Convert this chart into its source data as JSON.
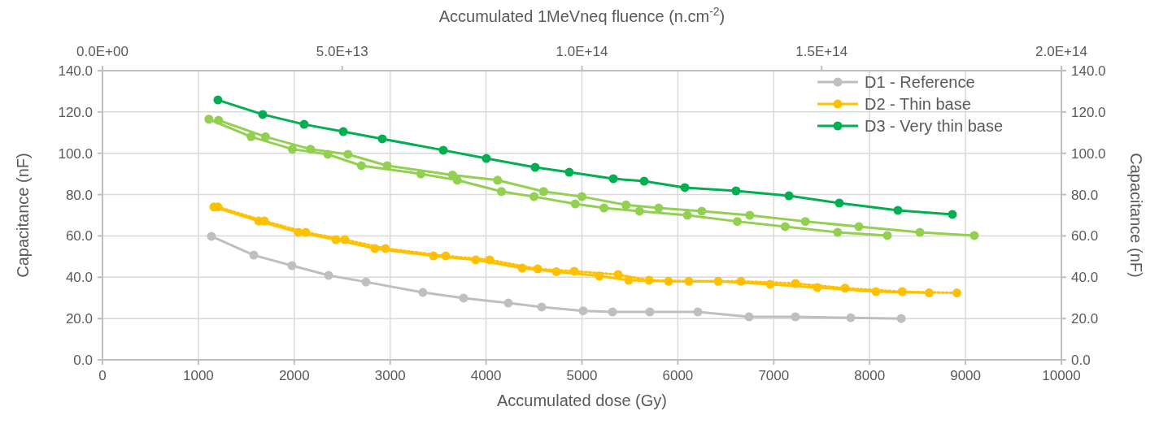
{
  "chart_data": {
    "type": "line",
    "xlabel": "Accumulated dose (Gy)",
    "ylabel": "Capacitance (nF)",
    "y2label": "Capacitance (nF)",
    "x2label": "Accumulated 1MeVneq fluence (n.cm$^{-2}$)",
    "xlim": [
      0,
      10000
    ],
    "xticks": [
      0,
      1000,
      2000,
      3000,
      4000,
      5000,
      6000,
      7000,
      8000,
      9000,
      10000
    ],
    "x2lim": [
      0,
      200000000000000.0
    ],
    "x2ticks": [
      {
        "value": 0,
        "label": "0.0E+00"
      },
      {
        "value": 50000000000000.0,
        "label": "5.0E+13"
      },
      {
        "value": 100000000000000.0,
        "label": "1.0E+14"
      },
      {
        "value": 150000000000000.0,
        "label": "1.5E+14"
      },
      {
        "value": 200000000000000.0,
        "label": "2.0E+14"
      }
    ],
    "ylim": [
      0,
      140
    ],
    "yticks": [
      {
        "value": 0,
        "label": "0.0"
      },
      {
        "value": 20,
        "label": "20.0"
      },
      {
        "value": 40,
        "label": "40.0"
      },
      {
        "value": 60,
        "label": "60.0"
      },
      {
        "value": 80,
        "label": "80.0"
      },
      {
        "value": 100,
        "label": "100.0"
      },
      {
        "value": 120,
        "label": "120.0"
      },
      {
        "value": 140,
        "label": "140.0"
      }
    ],
    "y2lim": [
      0,
      140
    ],
    "y2ticks": [
      {
        "value": 0,
        "label": "0.0"
      },
      {
        "value": 20,
        "label": "20.0"
      },
      {
        "value": 40,
        "label": "40.0"
      },
      {
        "value": 60,
        "label": "60.0"
      },
      {
        "value": 80,
        "label": "80.0"
      },
      {
        "value": 100,
        "label": "100.0"
      },
      {
        "value": 120,
        "label": "120.0"
      },
      {
        "value": 140,
        "label": "140.0"
      }
    ],
    "grid": true,
    "legend": "top right",
    "marker": "circle",
    "line_style": "solid",
    "series": [
      {
        "name": "D1 - Reference",
        "color": "#bfbfbf",
        "x": [
          1136,
          1578,
          1976,
          2358,
          2748,
          3341,
          3766,
          4232,
          4580,
          5013,
          5318,
          5708,
          6209,
          6743,
          7226,
          7803,
          8330
        ],
        "values": [
          59.8,
          50.7,
          45.6,
          40.9,
          37.7,
          32.6,
          29.9,
          27.5,
          25.6,
          23.7,
          23.2,
          23.2,
          23.2,
          20.8,
          20.8,
          20.4,
          20
        ]
      },
      {
        "name": "D2 - Thin base",
        "color": "#ffc000",
        "x": [
          1162,
          1628,
          2044,
          2434,
          2841,
          3452,
          3893,
          4377,
          4733,
          5182,
          5487,
          5903,
          6421,
          6963,
          7455,
          8066,
          8620
        ],
        "values": [
          74,
          67.2,
          61.7,
          58.2,
          53.9,
          50.3,
          48.4,
          44.4,
          42.7,
          40.6,
          38.5,
          38,
          38,
          36.6,
          35,
          33,
          32.4
        ]
      },
      {
        "color": "#ffc000",
        "line_style": "dotted",
        "x": [
          1204,
          1688,
          2120,
          2527,
          2951,
          3579,
          4037,
          4538,
          4919,
          5377,
          5700,
          6115,
          6658,
          7226,
          7744,
          8340,
          8910
        ],
        "values": [
          74,
          67.2,
          61.7,
          58.2,
          53.9,
          50.3,
          48.4,
          44,
          42.9,
          41.3,
          38.5,
          38,
          38,
          37,
          34.7,
          33,
          32.4
        ]
      },
      {
        "name": "D3 - Very thin base",
        "color": "#00b050",
        "x": [
          1204,
          1671,
          2103,
          2511,
          2918,
          3554,
          4003,
          4512,
          4868,
          5327,
          5649,
          6073,
          6607,
          7159,
          7684,
          8295,
          8863
        ],
        "values": [
          125.8,
          118.8,
          114,
          110.5,
          107,
          101.5,
          97.5,
          93.2,
          90.8,
          87.7,
          86.5,
          83.4,
          81.8,
          79.4,
          75.9,
          72.4,
          70.4
        ]
      },
      {
        "color": "#92d050",
        "x": [
          1210,
          1700,
          2170,
          2560,
          2970,
          3650,
          4120,
          4600,
          5000,
          5460,
          5800,
          6250,
          6750,
          7330,
          7888,
          8524,
          9092
        ],
        "values": [
          116,
          108,
          102,
          99.5,
          94,
          89.5,
          87,
          81.5,
          79,
          75,
          73.5,
          72,
          70,
          67,
          64.5,
          61.7,
          60.2
        ]
      },
      {
        "color": "#92d050",
        "x": [
          1110,
          1550,
          1980,
          2350,
          2700,
          3320,
          3700,
          4160,
          4500,
          4930,
          5230,
          5600,
          6100,
          6620,
          7120,
          7667,
          8185
        ],
        "values": [
          116.5,
          108,
          102,
          99.5,
          94,
          90,
          87,
          81.5,
          79,
          75.5,
          73.5,
          72,
          70,
          67,
          64.5,
          61.7,
          60.2
        ]
      }
    ]
  }
}
